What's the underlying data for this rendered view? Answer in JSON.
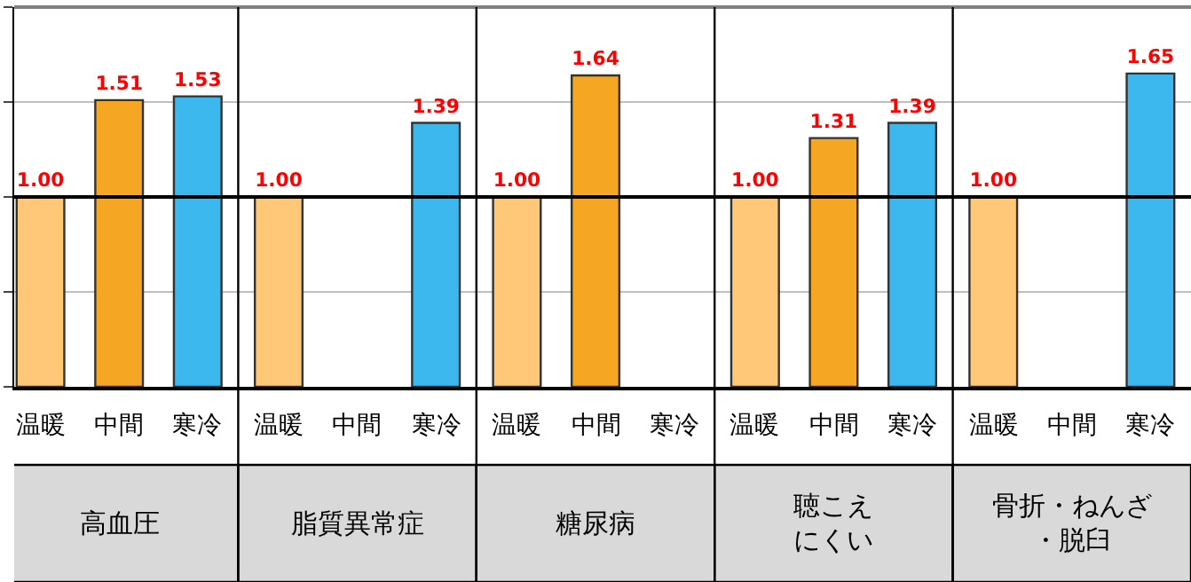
{
  "chart_data": {
    "type": "bar",
    "categories": [
      "高血圧",
      "脂質異常症",
      "糖尿病",
      "聴こえにくい",
      "骨折・ねんざ・脱臼"
    ],
    "series": [
      {
        "name": "温暖",
        "color": "#ffc878",
        "values": [
          1.0,
          1.0,
          1.0,
          1.0,
          1.0
        ],
        "value_labels": [
          "1.00",
          "1.00",
          "1.00",
          "1.00",
          "1.00"
        ]
      },
      {
        "name": "中間",
        "color": "#f5a623",
        "values": [
          1.51,
          null,
          1.64,
          1.31,
          null
        ],
        "value_labels": [
          "1.51",
          null,
          "1.64",
          "1.31",
          null
        ]
      },
      {
        "name": "寒冷",
        "color": "#3cb8ee",
        "values": [
          1.53,
          1.39,
          null,
          1.39,
          1.65
        ],
        "value_labels": [
          "1.53",
          "1.39",
          null,
          "1.39",
          "1.65"
        ]
      }
    ],
    "ylim": [
      0,
      2
    ],
    "yticks": [
      {
        "value": 0,
        "label": null
      },
      {
        "value": 0.5,
        "label": null
      },
      {
        "value": 1,
        "label": null
      },
      {
        "value": 1.5,
        "label": null
      },
      {
        "value": 2,
        "label": null
      }
    ],
    "tick_labels": "x",
    "grid": "y",
    "legend": false,
    "ref_lines": [
      {
        "axis": "y",
        "value": 1,
        "color": "#000000"
      }
    ]
  }
}
